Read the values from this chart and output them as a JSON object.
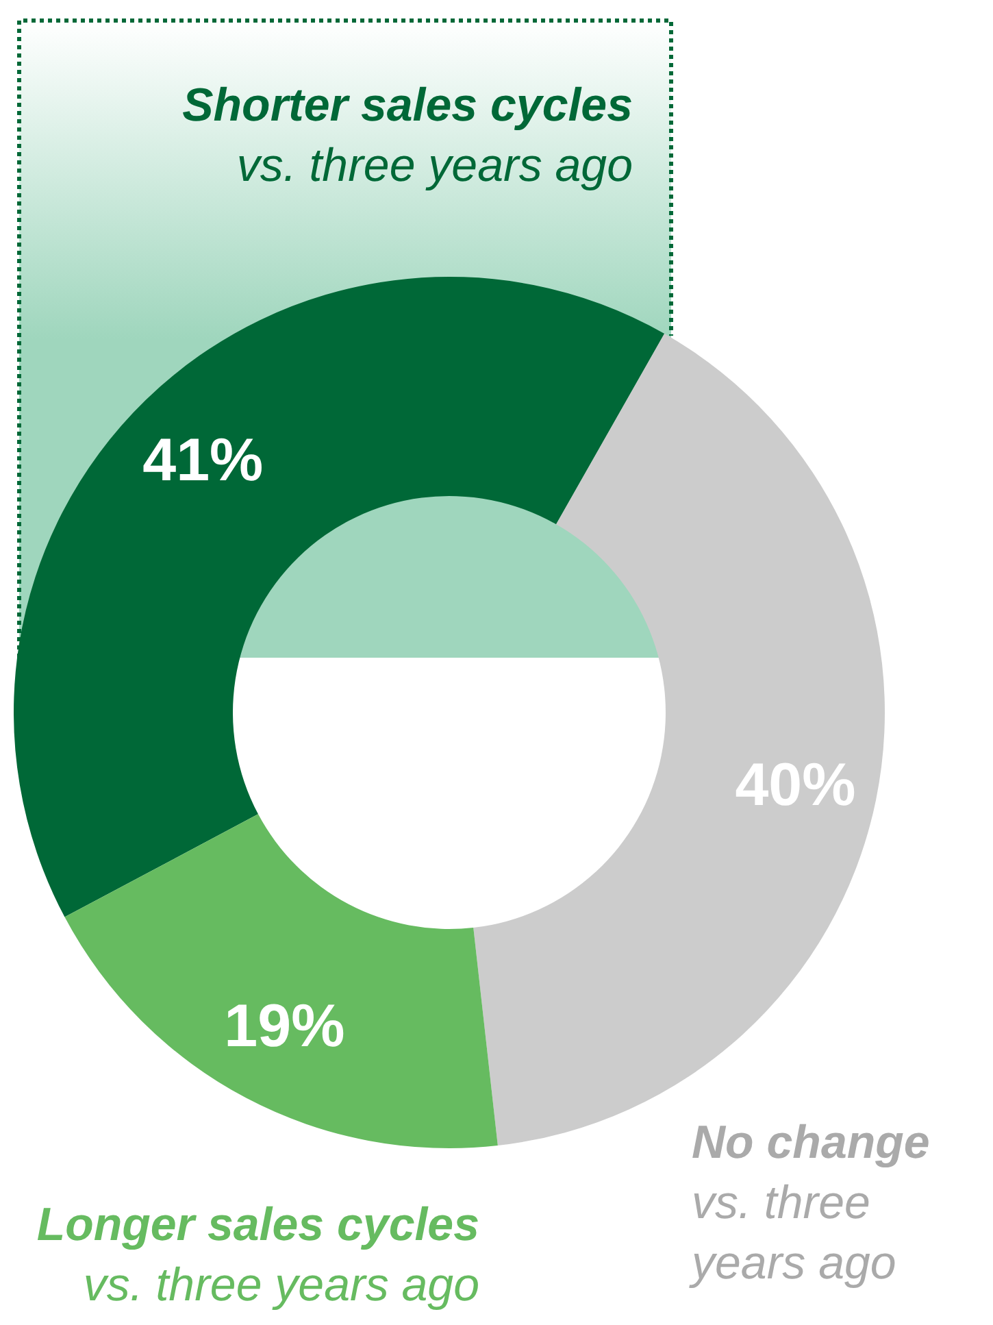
{
  "chart_data": {
    "type": "donut",
    "categories": [
      "Shorter sales cycles",
      "No change",
      "Longer sales cycles"
    ],
    "values": [
      41,
      40,
      19
    ],
    "colors": [
      "#006837",
      "#cccccc",
      "#66bb60"
    ],
    "data_labels": true,
    "value_labels": [
      "41%",
      "40%",
      "19%"
    ],
    "annotations": [
      "vs. three years ago",
      "vs. three years ago",
      "vs. three years ago"
    ]
  }
}
